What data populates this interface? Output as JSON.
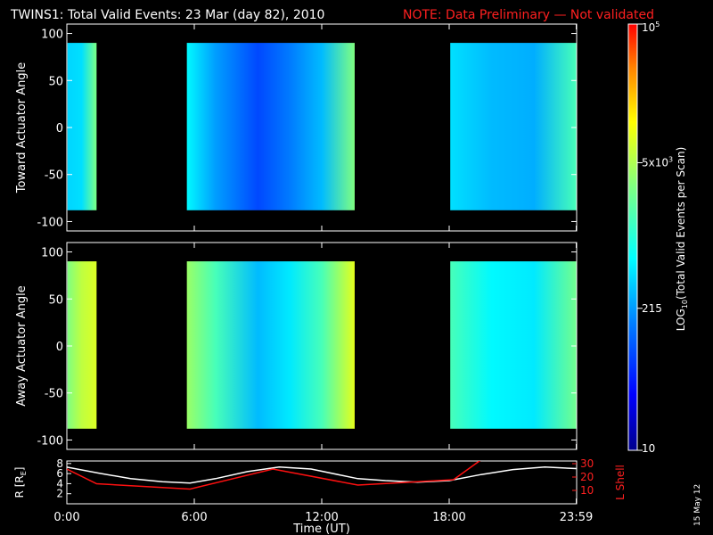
{
  "header": {
    "title": "TWINS1: Total Valid Events: 23 Mar (day  82), 2010",
    "note": "NOTE: Data Preliminary — Not validated"
  },
  "footer": {
    "date_stamp": "15 May 12"
  },
  "colors": {
    "background": "#000000",
    "note": "#ff2020",
    "l_shell": "#ff1010",
    "r_line": "#ffffff"
  },
  "chart_data": [
    {
      "type": "heatmap",
      "ylabel": "Toward Actuator Angle",
      "xlim": [
        0,
        24
      ],
      "ylim": [
        -110,
        110
      ],
      "yticks": [
        100,
        50,
        0,
        -50,
        -100
      ],
      "y_data_range": [
        -88,
        90
      ],
      "data_intervals_hours": [
        [
          0.03,
          1.4
        ],
        [
          5.65,
          13.55
        ],
        [
          18.05,
          23.98
        ]
      ],
      "zscale": "log",
      "zlim": [
        10,
        100000
      ],
      "z_profile": [
        {
          "t": 0.03,
          "z": 400
        },
        {
          "t": 0.7,
          "z": 450
        },
        {
          "t": 1.35,
          "z": 2600
        },
        {
          "t": 5.65,
          "z": 600
        },
        {
          "t": 7.0,
          "z": 220
        },
        {
          "t": 9.0,
          "z": 80
        },
        {
          "t": 10.5,
          "z": 150
        },
        {
          "t": 12.0,
          "z": 300
        },
        {
          "t": 13.55,
          "z": 3000
        },
        {
          "t": 18.05,
          "z": 450
        },
        {
          "t": 20.0,
          "z": 300
        },
        {
          "t": 22.0,
          "z": 260
        },
        {
          "t": 23.98,
          "z": 1500
        }
      ]
    },
    {
      "type": "heatmap",
      "ylabel": "Away Actuator Angle",
      "xlim": [
        0,
        24
      ],
      "ylim": [
        -110,
        110
      ],
      "yticks": [
        100,
        50,
        0,
        -50,
        -100
      ],
      "y_data_range": [
        -88,
        90
      ],
      "data_intervals_hours": [
        [
          0.03,
          1.4
        ],
        [
          5.65,
          13.55
        ],
        [
          18.05,
          23.98
        ]
      ],
      "zscale": "log",
      "zlim": [
        10,
        100000
      ],
      "z_profile": [
        {
          "t": 0.03,
          "z": 3000
        },
        {
          "t": 0.7,
          "z": 6000
        },
        {
          "t": 1.35,
          "z": 8000
        },
        {
          "t": 5.65,
          "z": 4000
        },
        {
          "t": 7.0,
          "z": 1500
        },
        {
          "t": 9.0,
          "z": 300
        },
        {
          "t": 10.5,
          "z": 500
        },
        {
          "t": 12.0,
          "z": 1500
        },
        {
          "t": 13.55,
          "z": 9000
        },
        {
          "t": 18.05,
          "z": 1500
        },
        {
          "t": 20.0,
          "z": 600
        },
        {
          "t": 22.0,
          "z": 500
        },
        {
          "t": 23.98,
          "z": 2500
        }
      ]
    },
    {
      "type": "line",
      "xlabel": "Time (UT)",
      "xticks": [
        "0:00",
        "6:00",
        "12:00",
        "18:00",
        "23:59"
      ],
      "xtick_hours": [
        0,
        6,
        12,
        18,
        23.98
      ],
      "xlim": [
        0,
        24
      ],
      "y_left_label": "R [R",
      "y_left_sub": "E",
      "y_left_label_end": "]",
      "y_left_ticks": [
        8,
        6,
        4,
        2
      ],
      "y_left_lim": [
        0,
        8.5
      ],
      "y_right_label": "L Shell",
      "y_right_ticks": [
        30,
        20,
        10
      ],
      "y_right_lim": [
        0,
        32
      ],
      "series": [
        {
          "axis": "left",
          "color": "#ffffff",
          "x": [
            0,
            1.5,
            3,
            4.5,
            5.8,
            7,
            8.5,
            10,
            11.5,
            13,
            13.7,
            15,
            16.5,
            18,
            19.5,
            21,
            22.5,
            23.98
          ],
          "y": [
            7.3,
            6.1,
            5.0,
            4.4,
            4.1,
            5.0,
            6.4,
            7.3,
            6.9,
            5.6,
            5.0,
            4.6,
            4.3,
            4.6,
            5.8,
            6.8,
            7.3,
            7.0
          ]
        },
        {
          "axis": "right",
          "x": [
            0,
            1.4,
            5.8,
            9.7,
            13.7,
            18.2,
            19.6
          ],
          "y": [
            26,
            15,
            11,
            26,
            14,
            18,
            34
          ]
        }
      ]
    },
    {
      "type": "colorbar",
      "label": "LOG",
      "label_sub": "10",
      "label_end": "(Total Valid  Events per Scan)",
      "ticks": [
        {
          "value": 10,
          "label": "10"
        },
        {
          "value": 215,
          "label": "215"
        },
        {
          "value": 5000,
          "label": "5x10",
          "sup": "3"
        },
        {
          "value": 100000,
          "label": "10",
          "sup": "5"
        }
      ],
      "zlim": [
        10,
        100000
      ]
    }
  ]
}
